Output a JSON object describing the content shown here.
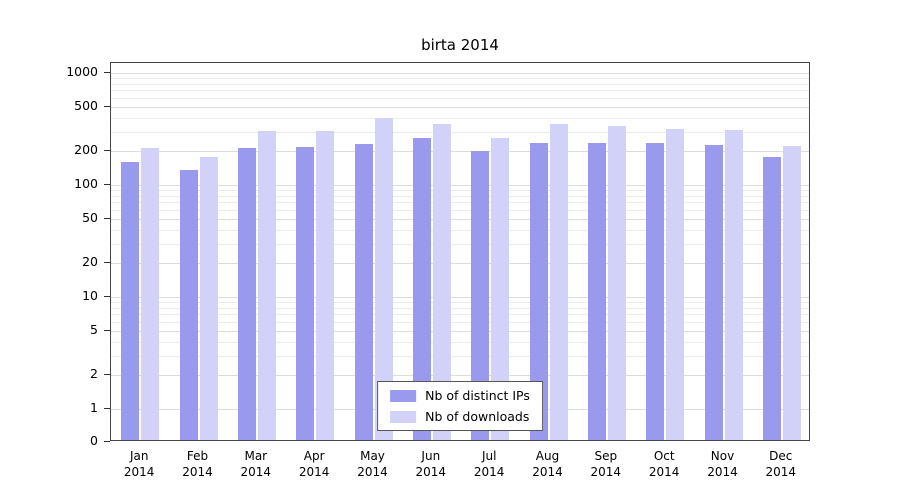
{
  "chart_data": {
    "type": "bar",
    "title": "birta 2014",
    "categories": [
      "Jan 2014",
      "Feb 2014",
      "Mar 2014",
      "Apr 2014",
      "May 2014",
      "Jun 2014",
      "Jul 2014",
      "Aug 2014",
      "Sep 2014",
      "Oct 2014",
      "Nov 2014",
      "Dec 2014"
    ],
    "series": [
      {
        "name": "Nb of distinct IPs",
        "color": "#9999ee",
        "values": [
          155,
          130,
          205,
          210,
          225,
          255,
          195,
          230,
          230,
          230,
          220,
          170
        ]
      },
      {
        "name": "Nb of downloads",
        "color": "#d2d2f8",
        "values": [
          205,
          170,
          290,
          290,
          380,
          335,
          250,
          340,
          325,
          305,
          295,
          215
        ]
      }
    ],
    "yscale": "log",
    "yticks": [
      1000,
      500,
      200,
      100,
      50,
      20,
      10,
      5,
      2,
      1,
      0
    ],
    "ylim": [
      0,
      1000
    ],
    "xlabel": "",
    "ylabel": "",
    "grid": true,
    "legend_position": "bottom-center"
  }
}
